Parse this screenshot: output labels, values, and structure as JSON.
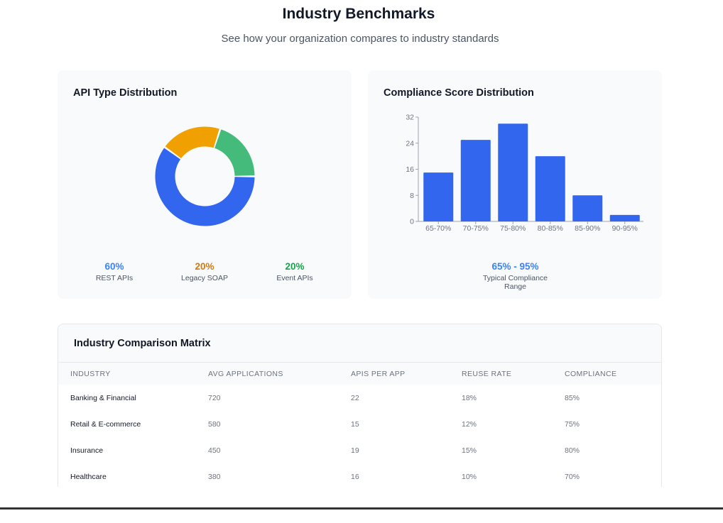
{
  "header": {
    "title": "Industry Benchmarks",
    "subtitle": "See how your organization compares to industry standards"
  },
  "api_card": {
    "title": "API Type Distribution",
    "stats": [
      {
        "value": "60%",
        "label": "REST APIs",
        "color": "#3b82f6"
      },
      {
        "value": "20%",
        "label": "Legacy SOAP",
        "color": "#d97706"
      },
      {
        "value": "20%",
        "label": "Event APIs",
        "color": "#16a34a"
      }
    ]
  },
  "compliance_card": {
    "title": "Compliance Score Distribution",
    "range_value": "65% - 95%",
    "range_label": "Typical Compliance Range"
  },
  "chart_data": [
    {
      "type": "pie",
      "categories": [
        "REST APIs",
        "Legacy SOAP",
        "Event APIs"
      ],
      "values": [
        60,
        20,
        20
      ],
      "colors": [
        "#3366ee",
        "#f0a000",
        "#44bb7a"
      ]
    },
    {
      "type": "bar",
      "categories": [
        "65-70%",
        "70-75%",
        "75-80%",
        "80-85%",
        "85-90%",
        "90-95%"
      ],
      "values": [
        15,
        25,
        30,
        20,
        8,
        2
      ],
      "ylim": [
        0,
        32
      ],
      "yticks": [
        0,
        8,
        16,
        24,
        32
      ],
      "color": "#3366ee",
      "grid": false
    }
  ],
  "matrix": {
    "title": "Industry Comparison Matrix",
    "columns": [
      "Industry",
      "Avg Applications",
      "APIs per App",
      "Reuse Rate",
      "Compliance"
    ],
    "rows": [
      [
        "Banking & Financial",
        "720",
        "22",
        "18%",
        "85%"
      ],
      [
        "Retail & E-commerce",
        "580",
        "15",
        "12%",
        "75%"
      ],
      [
        "Insurance",
        "450",
        "19",
        "15%",
        "80%"
      ],
      [
        "Healthcare",
        "380",
        "16",
        "10%",
        "70%"
      ]
    ]
  }
}
